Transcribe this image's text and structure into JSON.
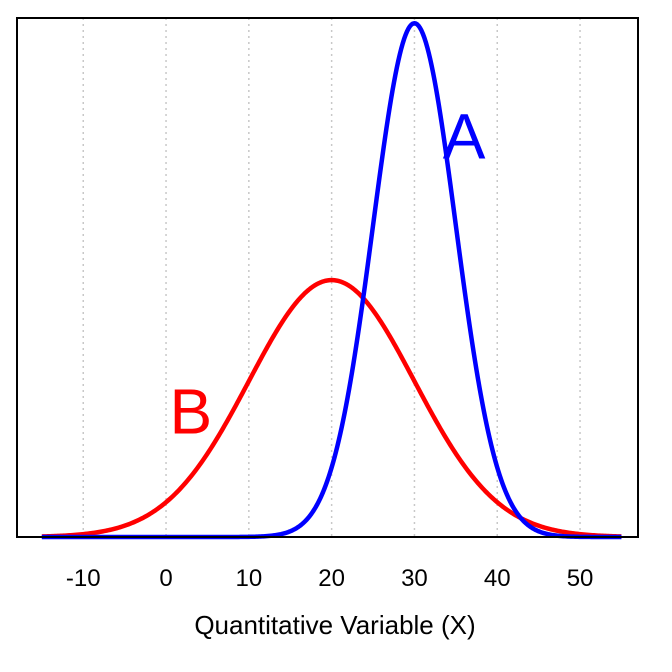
{
  "chart_data": {
    "type": "line",
    "title": "",
    "xlabel": "Quantitative Variable (X)",
    "ylabel": "",
    "xlim": [
      -18,
      57
    ],
    "ylim": [
      0,
      0.0806
    ],
    "x_ticks": [
      -10,
      0,
      10,
      20,
      30,
      40,
      50
    ],
    "x_tick_labels": [
      "-10",
      "0",
      "10",
      "20",
      "30",
      "40",
      "50"
    ],
    "grid": "vertical dotted at x ticks",
    "series": [
      {
        "name": "A",
        "distribution": "normal",
        "mean": 30,
        "sd": 5,
        "color": "#0000ff",
        "label_pos": [
          36,
          0.0588
        ]
      },
      {
        "name": "B",
        "distribution": "normal",
        "mean": 20,
        "sd": 10,
        "color": "#ff0000",
        "label_pos": [
          3,
          0.0161
        ]
      }
    ]
  }
}
